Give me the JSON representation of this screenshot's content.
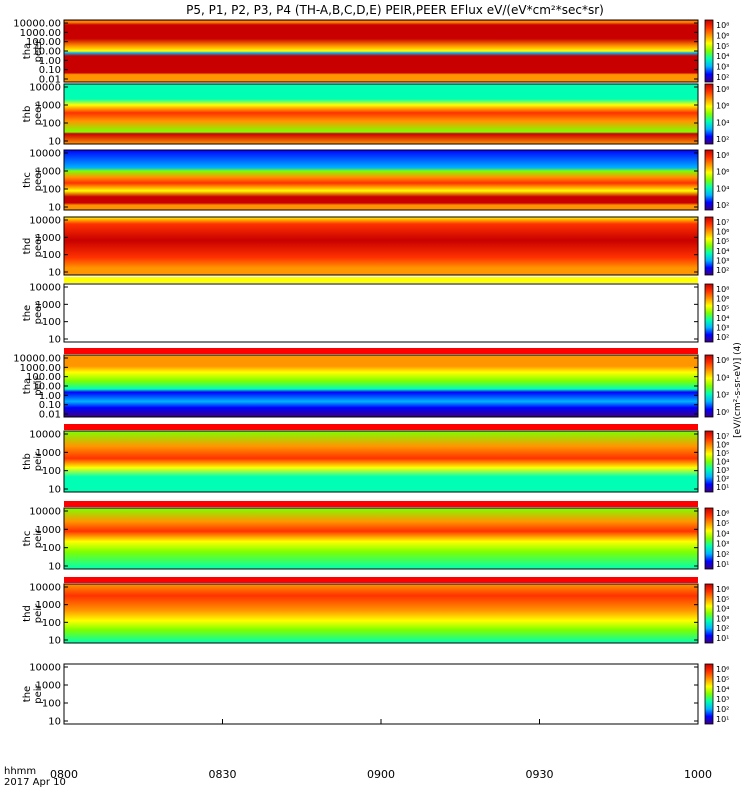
{
  "title": "P5, P1, P2, P3, P4 (TH-A,B,C,D,E) PEIR,PEER EFlux eV/(eV*cm²*sec*sr)",
  "time_axis": {
    "ticks": [
      "0800",
      "0830",
      "0900",
      "0930",
      "1000"
    ],
    "corner_line1": "hhmm",
    "corner_line2": "2017 Apr 10"
  },
  "colorbar_unit_label": "[eV/(cm²-s-sr-eV)] (4)",
  "colors": {
    "background": "#ffffff",
    "colorscale": [
      "#3c0080",
      "#0000ff",
      "#00b4ff",
      "#00ffb4",
      "#7dff00",
      "#ffff00",
      "#ff9600",
      "#ff3200",
      "#c80000"
    ],
    "missing_band": "#ff0000",
    "empty_band": "#ffff00"
  },
  "chart_data": [
    {
      "type": "heatmap",
      "probe": "tha",
      "species": "peer",
      "yscale": "log",
      "ylim": [
        0.01,
        10000
      ],
      "yticks": [
        "10000.00",
        "1000.00",
        "100.00",
        "10.00",
        "1.00",
        "0.10",
        "0.01"
      ],
      "cbar_ticks": [
        "10⁸",
        "10⁶",
        "10⁵",
        "10⁴",
        "10³",
        "10²"
      ],
      "has_data": true
    },
    {
      "type": "heatmap",
      "probe": "thb",
      "species": "peer",
      "yscale": "log",
      "ylim": [
        10,
        20000
      ],
      "yticks": [
        "10000",
        "1000",
        "100",
        "10"
      ],
      "cbar_ticks": [
        "10⁸",
        "10⁶",
        "10⁴",
        "10²"
      ],
      "has_data": true
    },
    {
      "type": "heatmap",
      "probe": "thc",
      "species": "peer",
      "yscale": "log",
      "ylim": [
        10,
        20000
      ],
      "yticks": [
        "10000",
        "1000",
        "100",
        "10"
      ],
      "cbar_ticks": [
        "10⁸",
        "10⁶",
        "10⁴",
        "10²"
      ],
      "has_data": true
    },
    {
      "type": "heatmap",
      "probe": "thd",
      "species": "peer",
      "yscale": "log",
      "ylim": [
        10,
        20000
      ],
      "yticks": [
        "10000",
        "1000",
        "100",
        "10"
      ],
      "cbar_ticks": [
        "10⁷",
        "10⁶",
        "10⁵",
        "10⁴",
        "10³",
        "10²"
      ],
      "has_data": true
    },
    {
      "type": "heatmap",
      "probe": "the",
      "species": "peer",
      "yscale": "log",
      "ylim": [
        10,
        20000
      ],
      "yticks": [
        "10000",
        "1000",
        "100",
        "10"
      ],
      "cbar_ticks": [
        "10⁸",
        "10⁶",
        "10⁵",
        "10⁴",
        "10³",
        "10²"
      ],
      "has_data": false
    },
    {
      "type": "heatmap",
      "probe": "tha",
      "species": "peir",
      "yscale": "log",
      "ylim": [
        0.01,
        10000
      ],
      "yticks": [
        "10000.00",
        "1000.00",
        "100.00",
        "10.00",
        "1.00",
        "0.10",
        "0.01"
      ],
      "cbar_ticks": [
        "10⁶",
        "10⁴",
        "10²",
        "10⁰"
      ],
      "has_data": true
    },
    {
      "type": "heatmap",
      "probe": "thb",
      "species": "peir",
      "yscale": "log",
      "ylim": [
        10,
        20000
      ],
      "yticks": [
        "10000",
        "1000",
        "100",
        "10"
      ],
      "cbar_ticks": [
        "10⁷",
        "10⁶",
        "10⁵",
        "10⁴",
        "10³",
        "10²",
        "10¹"
      ],
      "has_data": true
    },
    {
      "type": "heatmap",
      "probe": "thc",
      "species": "peir",
      "yscale": "log",
      "ylim": [
        10,
        20000
      ],
      "yticks": [
        "10000",
        "1000",
        "100",
        "10"
      ],
      "cbar_ticks": [
        "10⁶",
        "10⁵",
        "10⁴",
        "10³",
        "10²",
        "10¹"
      ],
      "has_data": true
    },
    {
      "type": "heatmap",
      "probe": "thd",
      "species": "peir",
      "yscale": "log",
      "ylim": [
        10,
        20000
      ],
      "yticks": [
        "10000",
        "1000",
        "100",
        "10"
      ],
      "cbar_ticks": [
        "10⁶",
        "10⁵",
        "10⁴",
        "10³",
        "10²",
        "10¹"
      ],
      "has_data": true
    },
    {
      "type": "heatmap",
      "probe": "the",
      "species": "peir",
      "yscale": "log",
      "ylim": [
        10,
        20000
      ],
      "yticks": [
        "10000",
        "1000",
        "100",
        "10"
      ],
      "cbar_ticks": [
        "10⁶",
        "10⁵",
        "10⁴",
        "10³",
        "10²",
        "10¹"
      ],
      "has_data": false
    }
  ]
}
